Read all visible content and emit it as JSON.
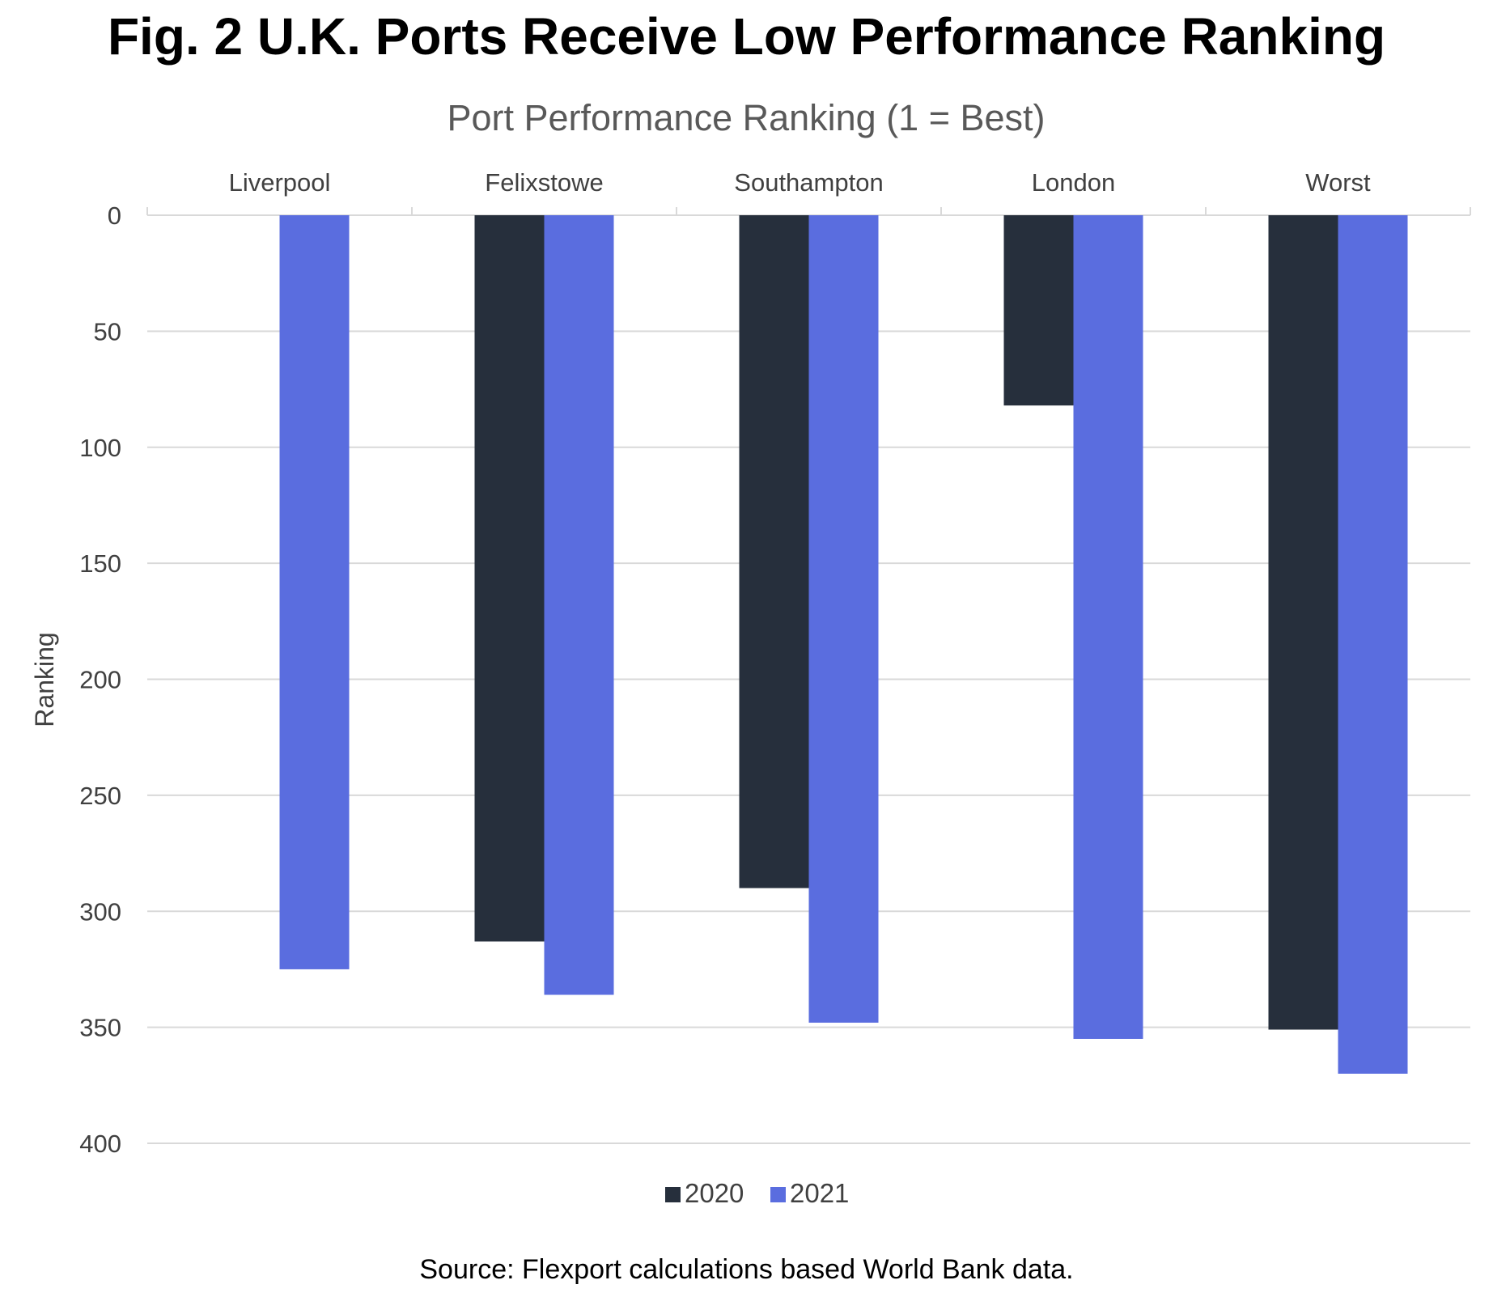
{
  "figure": {
    "title": "Fig. 2 U.K. Ports Receive Low Performance Ranking",
    "source": "Source: Flexport calculations based World Bank data."
  },
  "colors": {
    "series_2020": "#262f3c",
    "series_2021": "#5a6ddf",
    "gridline": "#d9d9d9",
    "text": "#404040"
  },
  "chart_data": {
    "type": "bar",
    "title": "Port Performance Ranking (1 = Best)",
    "xlabel": "",
    "ylabel": "Ranking",
    "categories": [
      "Liverpool",
      "Felixstowe",
      "Southampton",
      "London",
      "Worst"
    ],
    "series": [
      {
        "name": "2020",
        "values": [
          null,
          313,
          290,
          82,
          351
        ]
      },
      {
        "name": "2021",
        "values": [
          325,
          336,
          348,
          355,
          370
        ]
      }
    ],
    "ylim": [
      0,
      400
    ],
    "y_ticks": [
      0,
      50,
      100,
      150,
      200,
      250,
      300,
      350,
      400
    ],
    "y_axis_inverted": true,
    "x_axis_position": "top",
    "grid": true,
    "legend_position": "bottom"
  }
}
